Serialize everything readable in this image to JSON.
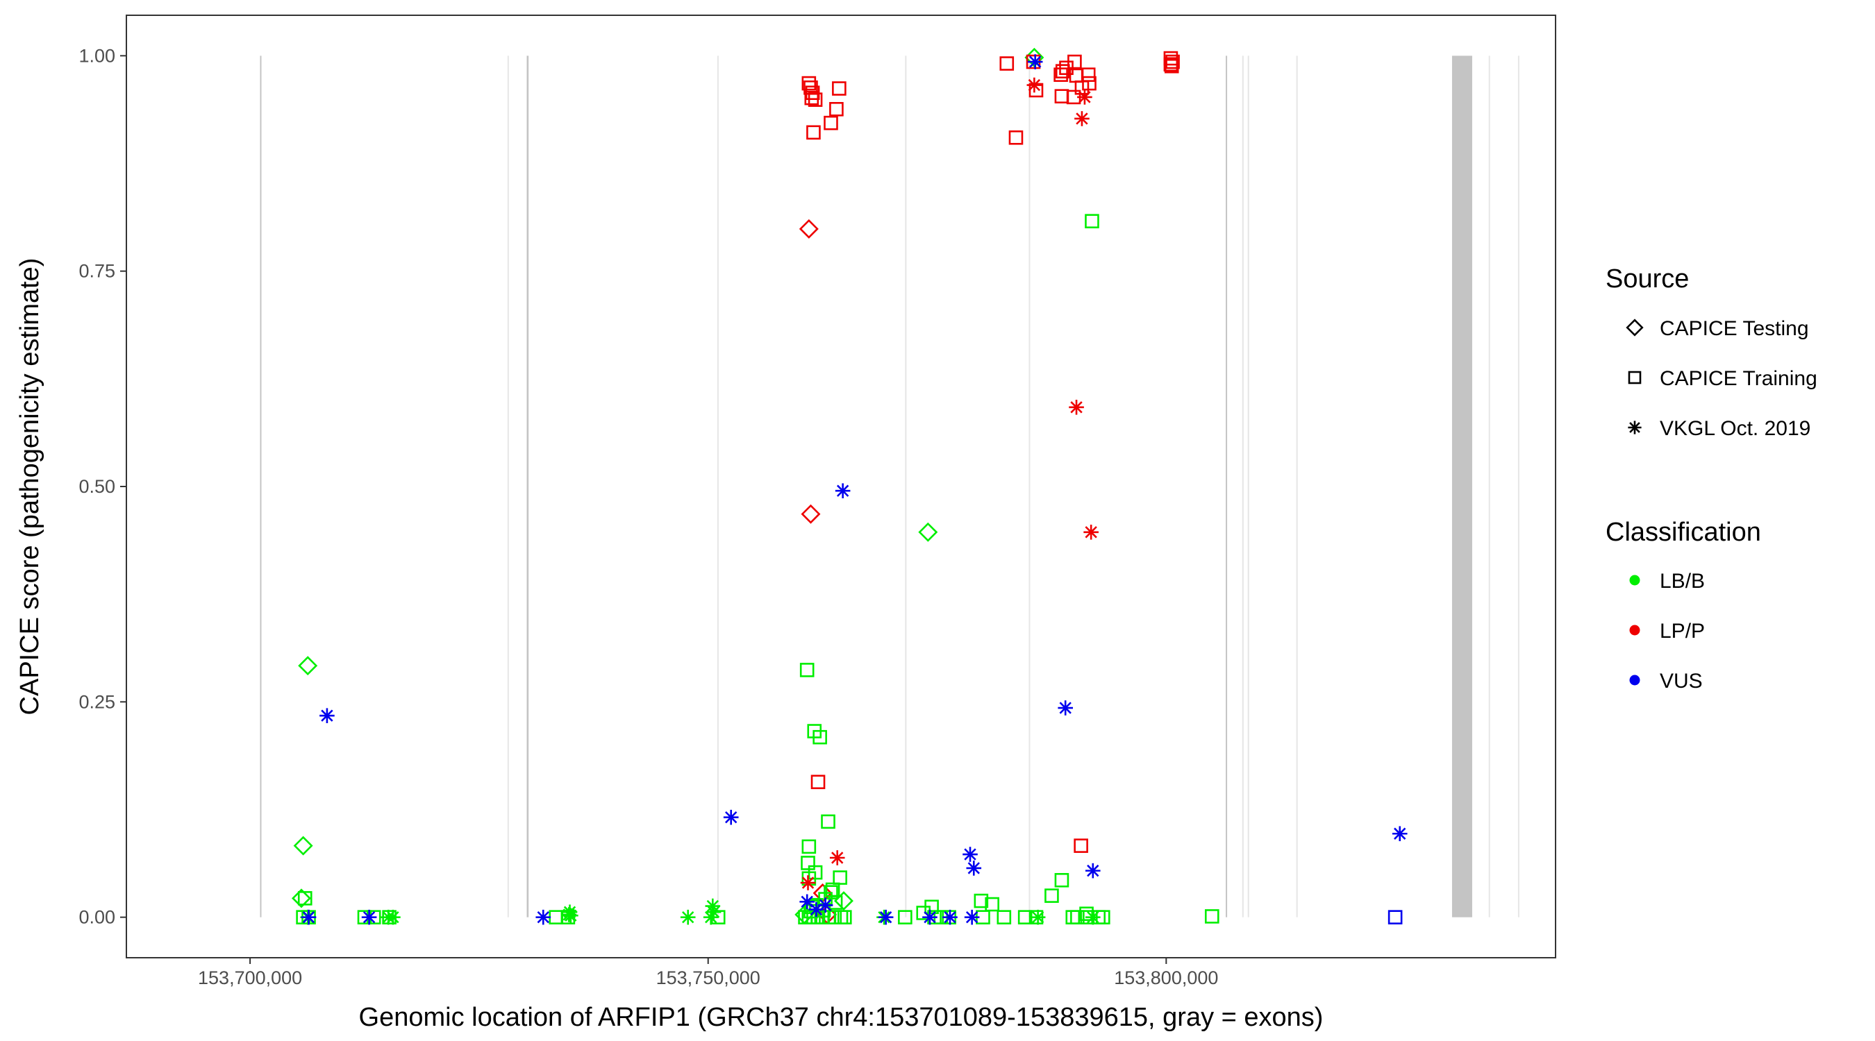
{
  "chart_data": {
    "type": "scatter",
    "xlabel": "Genomic location of ARFIP1 (GRCh37 chr4:153701089-153839615, gray = exons)",
    "ylabel": "CAPICE score (pathogenicity estimate)",
    "xlim": [
      153686500,
      153842500
    ],
    "ylim": [
      -0.047,
      1.047
    ],
    "x_ticks": [
      153700000,
      153750000,
      153800000
    ],
    "x_tick_labels": [
      "153,700,000",
      "153,750,000",
      "153,800,000"
    ],
    "y_ticks": [
      0,
      0.25,
      0.5,
      0.75,
      1.0
    ],
    "y_tick_labels": [
      "0.00",
      "0.25",
      "0.50",
      "0.75",
      "1.00"
    ],
    "grid": false,
    "exons": [
      {
        "start": 153701089,
        "end": 153701200,
        "shade": "dark"
      },
      {
        "start": 153728100,
        "end": 153728150,
        "shade": "light"
      },
      {
        "start": 153730200,
        "end": 153730400,
        "shade": "dark"
      },
      {
        "start": 153751000,
        "end": 153751100,
        "shade": "light"
      },
      {
        "start": 153771500,
        "end": 153771600,
        "shade": "light"
      },
      {
        "start": 153785000,
        "end": 153785100,
        "shade": "light"
      },
      {
        "start": 153806500,
        "end": 153806600,
        "shade": "dark"
      },
      {
        "start": 153808300,
        "end": 153808400,
        "shade": "light"
      },
      {
        "start": 153808900,
        "end": 153809000,
        "shade": "light"
      },
      {
        "start": 153814200,
        "end": 153814300,
        "shade": "light"
      },
      {
        "start": 153831200,
        "end": 153833400,
        "shade": "dark"
      },
      {
        "start": 153835200,
        "end": 153835300,
        "shade": "light"
      },
      {
        "start": 153838400,
        "end": 153838500,
        "shade": "light"
      }
    ],
    "legend": {
      "source_title": "Source",
      "source_items": [
        {
          "label": "CAPICE Testing",
          "shape": "diamond"
        },
        {
          "label": "CAPICE Training",
          "shape": "square"
        },
        {
          "label": "VKGL Oct. 2019",
          "shape": "star"
        }
      ],
      "class_title": "Classification",
      "class_items": [
        {
          "label": "LB/B",
          "color": "#00ee00"
        },
        {
          "label": "LP/P",
          "color": "#ee0000"
        },
        {
          "label": "VUS",
          "color": "#0000ee"
        }
      ]
    },
    "series": [
      {
        "source": "CAPICE Testing",
        "class": "LB/B",
        "x": [
          153706300,
          153705800,
          153705600,
          153774000,
          153764800,
          153785600,
          153760500
        ],
        "y": [
          0.292,
          0.083,
          0.022,
          0.447,
          0.019,
          0.998,
          0.003
        ]
      },
      {
        "source": "CAPICE Testing",
        "class": "LP/P",
        "x": [
          153761000,
          153761200,
          153762500,
          153763000
        ],
        "y": [
          0.799,
          0.468,
          0.028,
          0.003
        ]
      },
      {
        "source": "CAPICE Training",
        "class": "LB/B",
        "x": [
          153706000,
          153705800,
          153706400,
          153712500,
          153713500,
          153715200,
          153733400,
          153734700,
          153751100,
          153760600,
          153761000,
          153761500,
          153762000,
          153762500,
          153763200,
          153763800,
          153764500,
          153764900,
          153761200,
          153761800,
          153762800,
          153763600,
          153761000,
          153761700,
          153763900,
          153764400,
          153761300,
          153762600,
          153763400,
          153771500,
          153774700,
          153775400,
          153776300,
          153780000,
          153782300,
          153784600,
          153785800,
          153789800,
          153790300,
          153791400,
          153792600,
          153793100,
          153773500,
          153774400,
          153805000,
          153779800,
          153781000,
          153791900,
          153791300,
          153788600,
          153787500,
          153760800,
          153763100
        ],
        "y": [
          0.022,
          0.0,
          0.0,
          0.0,
          0.0,
          0.0,
          0.0,
          0.0,
          0.0,
          0.0,
          0.0,
          0.0,
          0.0,
          0.0,
          0.0,
          0.0,
          0.0,
          0.0,
          0.007,
          0.014,
          0.021,
          0.032,
          0.045,
          0.052,
          0.017,
          0.046,
          0.012,
          0.008,
          0.029,
          0.0,
          0.0,
          0.0,
          0.0,
          0.0,
          0.0,
          0.0,
          0.0,
          0.0,
          0.0,
          0.0,
          0.0,
          0.0,
          0.005,
          0.012,
          0.001,
          0.019,
          0.015,
          0.808,
          0.004,
          0.043,
          0.025,
          0.287,
          0.111
        ]
      },
      {
        "source": "CAPICE Training",
        "class": "LB/B",
        "x": [
          153761600,
          153762200,
          153761000
        ],
        "y": [
          0.216,
          0.209,
          0.082
        ]
      },
      {
        "source": "CAPICE Training",
        "class": "LB/B",
        "x": [
          153760900
        ],
        "y": [
          0.063
        ]
      },
      {
        "source": "CAPICE Training",
        "class": "LP/P",
        "x": [
          153761000,
          153761200,
          153761400,
          153761700,
          153761300,
          153761500,
          153763400,
          153764000,
          153764300,
          153782600,
          153783600,
          153785500,
          153785800,
          153788500,
          153788700,
          153789100,
          153790000,
          153790200,
          153790800,
          153791600,
          153788600,
          153789900,
          153791500,
          153800500,
          153800700,
          153800500,
          153800600,
          153762000,
          153790700
        ],
        "y": [
          0.968,
          0.963,
          0.957,
          0.949,
          0.951,
          0.911,
          0.922,
          0.938,
          0.962,
          0.991,
          0.905,
          0.993,
          0.96,
          0.978,
          0.982,
          0.986,
          0.993,
          0.977,
          0.963,
          0.968,
          0.953,
          0.952,
          0.978,
          0.997,
          0.993,
          0.99,
          0.988,
          0.157,
          0.083
        ]
      },
      {
        "source": "CAPICE Training",
        "class": "VUS",
        "x": [
          153825000
        ],
        "y": [
          0.0
        ]
      },
      {
        "source": "VKGL Oct. 2019",
        "class": "LB/B",
        "x": [
          153706300,
          153715100,
          153715600,
          153734800,
          153734900,
          153735000,
          153747800,
          153750300,
          153750600,
          153750500,
          153769200,
          153786000,
          153792000
        ],
        "y": [
          0.0,
          0.0,
          0.0,
          0.003,
          0.006,
          0.002,
          0.0,
          0.0,
          0.006,
          0.013,
          0.0,
          0.0,
          0.0
        ]
      },
      {
        "source": "VKGL Oct. 2019",
        "class": "LP/P",
        "x": [
          153760900,
          153764100,
          153785600,
          153790200,
          153790800,
          153791100,
          153791800
        ],
        "y": [
          0.04,
          0.069,
          0.966,
          0.592,
          0.927,
          0.952,
          0.447
        ]
      },
      {
        "source": "VKGL Oct. 2019",
        "class": "VUS",
        "x": [
          153708400,
          153713000,
          153732000,
          153752500,
          153764700,
          153769400,
          153774200,
          153760800,
          153761800,
          153762800,
          153776400,
          153778600,
          153779000,
          153778800,
          153785700,
          153789000,
          153792000,
          153825500,
          153706400
        ],
        "y": [
          0.234,
          0.0,
          0.0,
          0.116,
          0.495,
          0.0,
          0.0,
          0.018,
          0.009,
          0.014,
          0.0,
          0.073,
          0.057,
          0.0,
          0.993,
          0.243,
          0.054,
          0.097,
          0.0
        ]
      }
    ]
  }
}
